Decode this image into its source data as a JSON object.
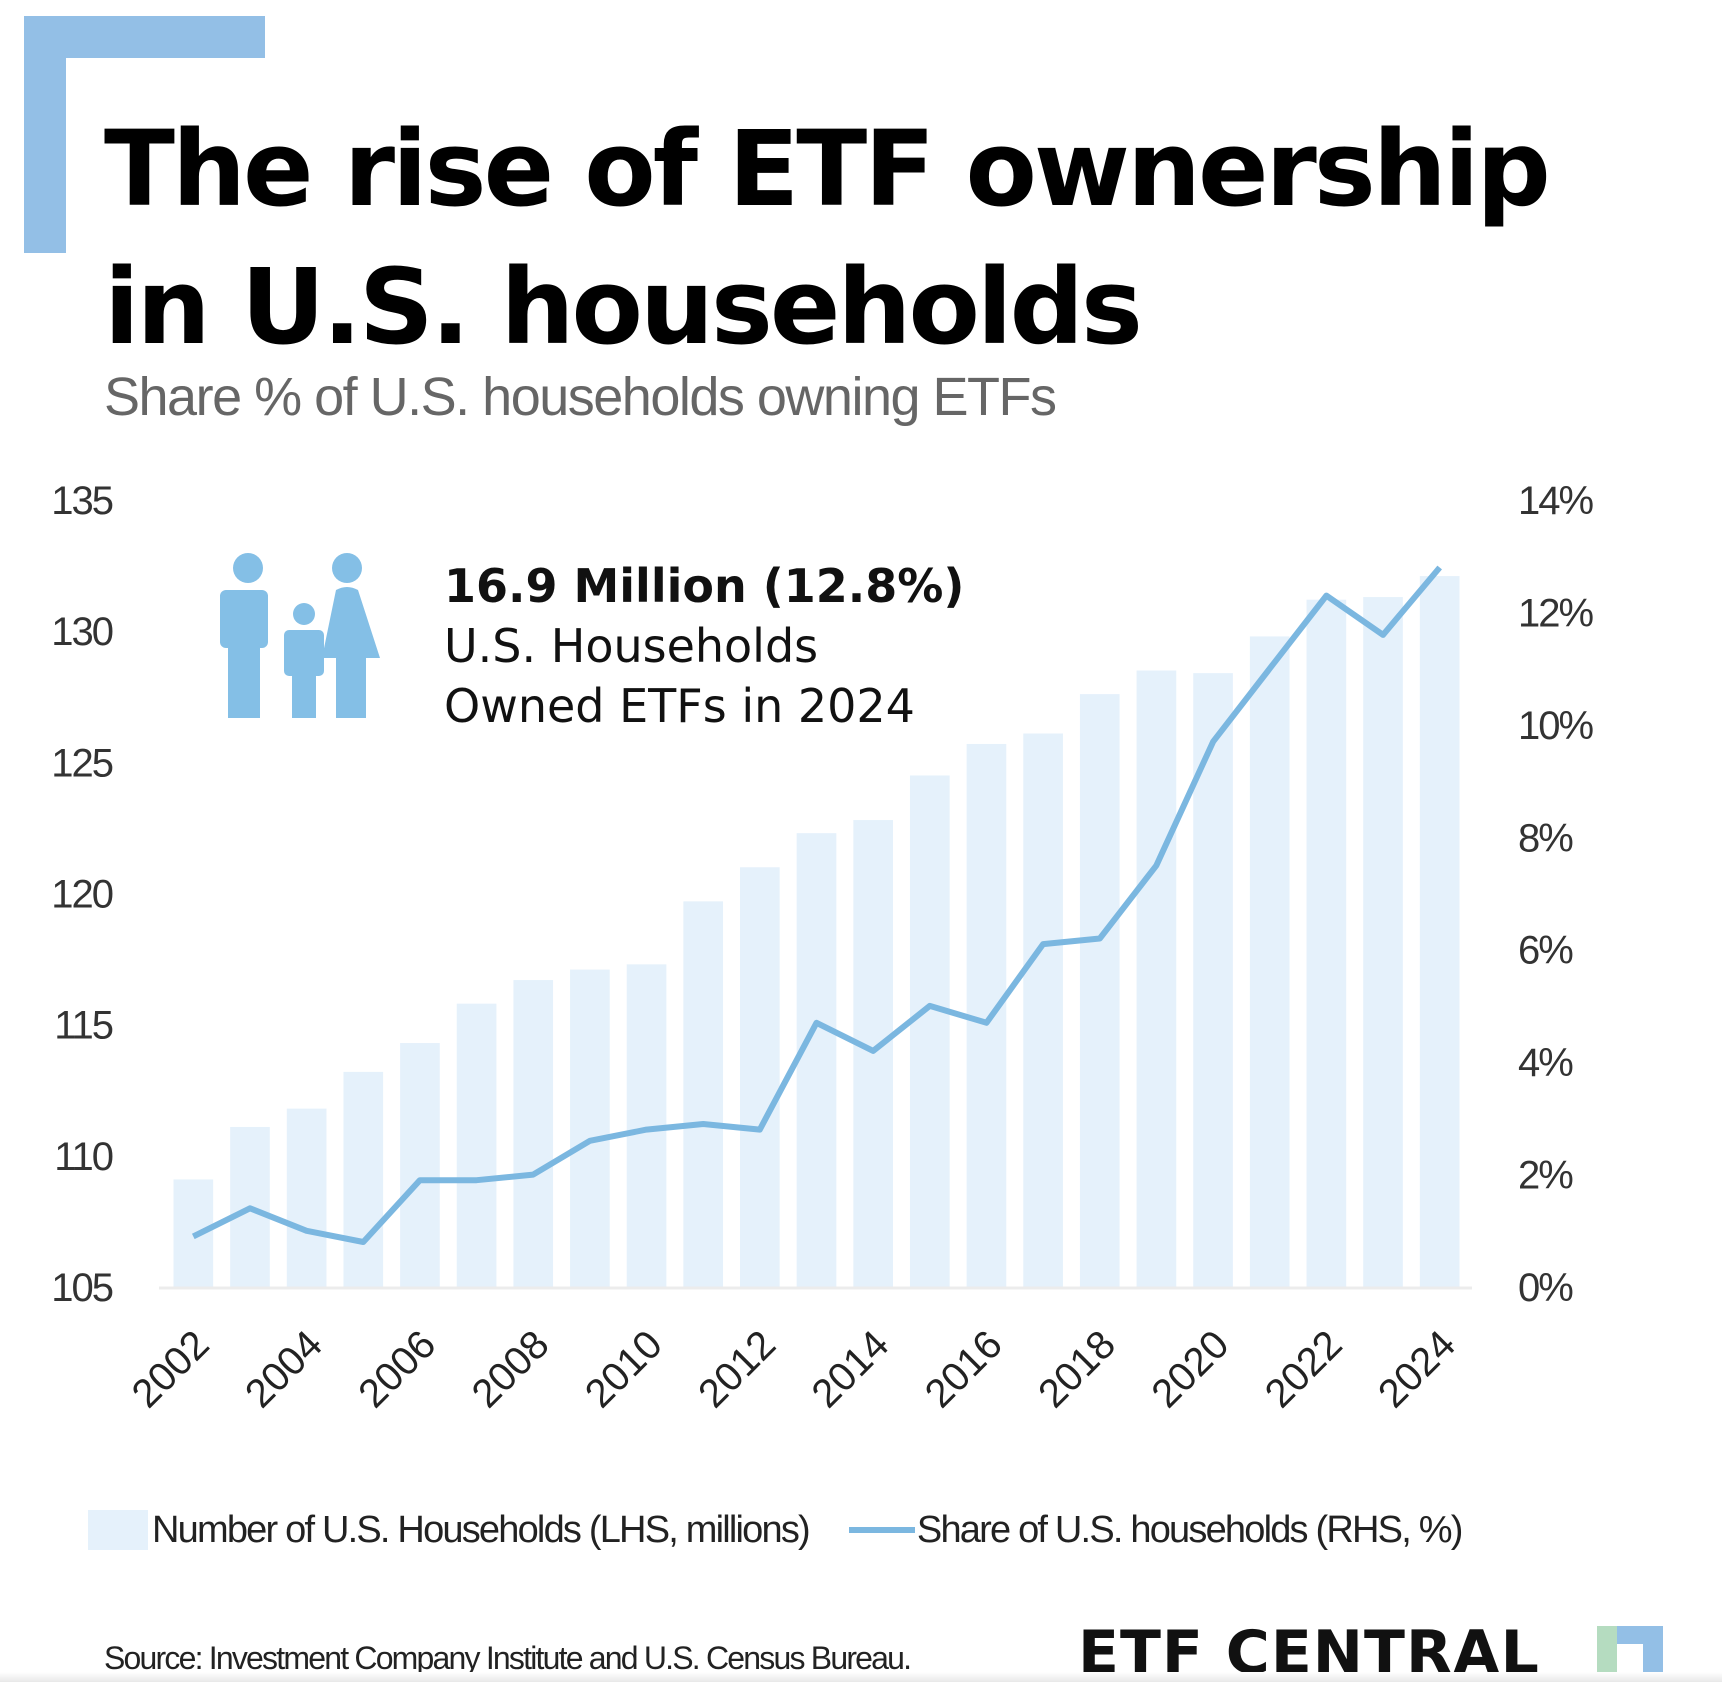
{
  "header": {
    "title_line1": "The rise of ETF ownership",
    "title_line2": "in U.S. households",
    "subtitle": "Share % of U.S. households owning ETFs"
  },
  "callout": {
    "headline": "16.9 Million (12.8%)",
    "line1": "U.S. Households",
    "line2": "Owned ETFs in 2024",
    "icon": "family-icon"
  },
  "colors": {
    "accent": "#93bfe6",
    "bar": "#e5f1fb",
    "line": "#7bb7e0",
    "icon": "#84bfe6",
    "logo_green": "#b5dcc0",
    "logo_blue": "#93bfe6"
  },
  "chart_data": {
    "type": "bar",
    "title": "The rise of ETF ownership in U.S. households",
    "subtitle": "Share % of U.S. households owning ETFs",
    "categories": [
      "2002",
      "2003",
      "2004",
      "2005",
      "2006",
      "2007",
      "2008",
      "2009",
      "2010",
      "2011",
      "2012",
      "2013",
      "2014",
      "2015",
      "2016",
      "2017",
      "2018",
      "2019",
      "2020",
      "2021",
      "2022",
      "2023",
      "2024"
    ],
    "x_tick_labels": [
      "2002",
      "2004",
      "2006",
      "2008",
      "2010",
      "2012",
      "2014",
      "2016",
      "2018",
      "2020",
      "2022",
      "2024"
    ],
    "series": [
      {
        "name": "Number of U.S. Households (LHS, millions)",
        "type": "bar",
        "axis": "left",
        "values": [
          109.1,
          111.1,
          111.8,
          113.2,
          114.3,
          115.8,
          116.7,
          117.1,
          117.3,
          119.7,
          121.0,
          122.3,
          122.8,
          124.5,
          125.7,
          126.1,
          127.6,
          128.5,
          128.4,
          129.8,
          131.2,
          131.3,
          132.1
        ]
      },
      {
        "name": "Share of U.S. households (RHS, %)",
        "type": "line",
        "axis": "right",
        "values": [
          0.9,
          1.4,
          1.0,
          0.8,
          1.9,
          1.9,
          2.0,
          2.6,
          2.8,
          2.9,
          2.8,
          4.7,
          4.2,
          5.0,
          4.7,
          6.1,
          6.2,
          7.5,
          9.7,
          11.0,
          12.3,
          11.6,
          12.8
        ]
      }
    ],
    "left_axis": {
      "ylim": [
        105,
        135
      ],
      "ticks": [
        "105",
        "110",
        "115",
        "120",
        "125",
        "130",
        "135"
      ]
    },
    "right_axis": {
      "ylim": [
        0,
        14
      ],
      "ticks": [
        "0%",
        "2%",
        "4%",
        "6%",
        "8%",
        "10%",
        "12%",
        "14%"
      ]
    },
    "xlabel": "",
    "ylabel": "",
    "grid": false,
    "legend_position": "bottom"
  },
  "legend": {
    "bar_label": "Number of U.S. Households (LHS, millions)",
    "line_label": "Share of U.S. households (RHS, %)"
  },
  "footer": {
    "source": "Source: Investment Company Institute and U.S. Census Bureau.",
    "brand": "ETF CENTRAL"
  }
}
